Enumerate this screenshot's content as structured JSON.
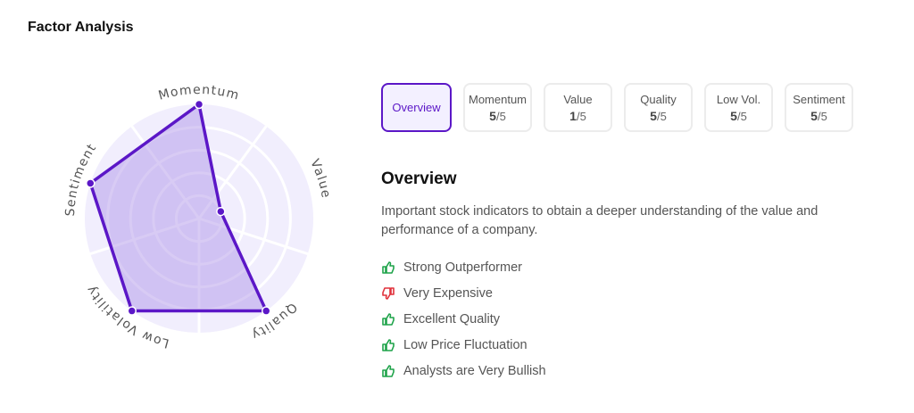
{
  "title": "Factor Analysis",
  "colors": {
    "accent": "#5b17c7",
    "fill": "#d7c8f3",
    "bg": "#f1eefd",
    "positive": "#1fa34a",
    "negative": "#e0323c"
  },
  "chart_data": {
    "type": "radar",
    "axes": [
      "Momentum",
      "Value",
      "Quality",
      "Low Volatility",
      "Sentiment"
    ],
    "values": [
      5,
      1,
      5,
      5,
      5
    ],
    "range": [
      0,
      5
    ],
    "rings": 5
  },
  "tabs": [
    {
      "label": "Overview",
      "active": true
    },
    {
      "label": "Momentum",
      "score": "5",
      "max": "/5"
    },
    {
      "label": "Value",
      "score": "1",
      "max": "/5"
    },
    {
      "label": "Quality",
      "score": "5",
      "max": "/5"
    },
    {
      "label": "Low Vol.",
      "score": "5",
      "max": "/5"
    },
    {
      "label": "Sentiment",
      "score": "5",
      "max": "/5"
    }
  ],
  "overview": {
    "title": "Overview",
    "description": "Important stock indicators to obtain a deeper understanding of the value and performance of a company.",
    "items": [
      {
        "text": "Strong Outperformer",
        "icon": "thumbs-up"
      },
      {
        "text": "Very Expensive",
        "icon": "thumbs-down"
      },
      {
        "text": "Excellent Quality",
        "icon": "thumbs-up"
      },
      {
        "text": "Low Price Fluctuation",
        "icon": "thumbs-up"
      },
      {
        "text": "Analysts are Very Bullish",
        "icon": "thumbs-up"
      }
    ]
  }
}
